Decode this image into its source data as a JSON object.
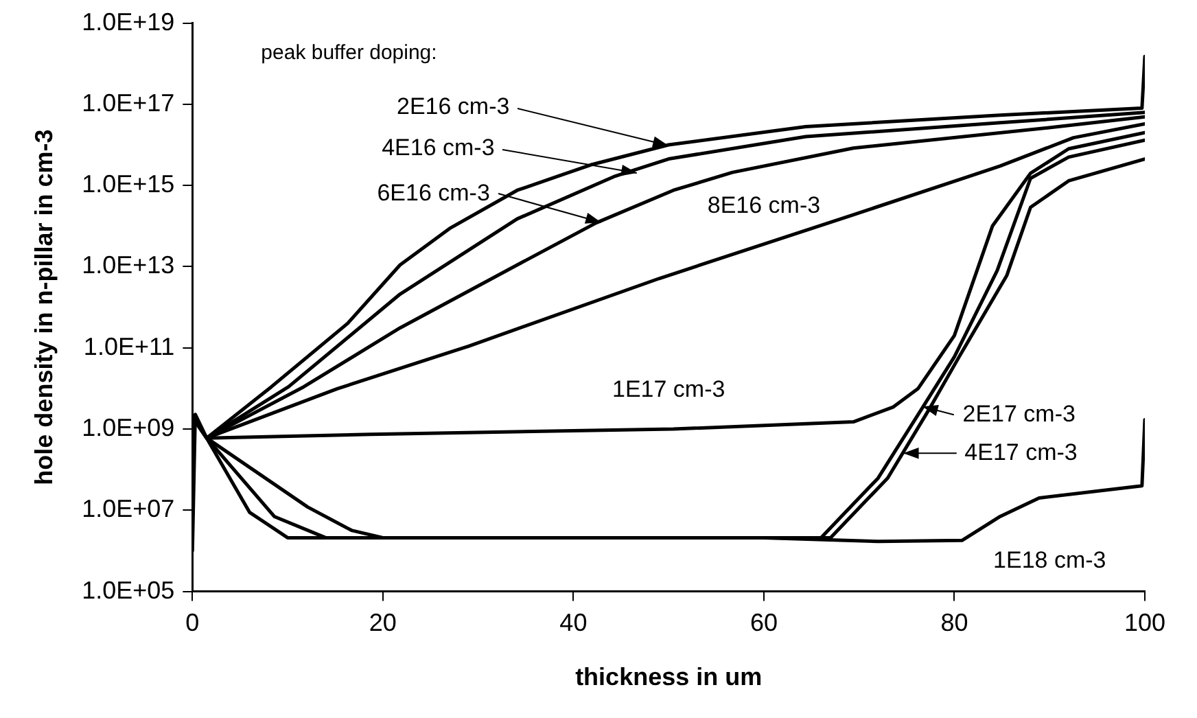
{
  "chart_data": {
    "type": "line",
    "xlabel": "thickness in um",
    "ylabel": "hole density in n-pillar in cm-3",
    "log": "y",
    "xlim": [
      0,
      100
    ],
    "xticks": [
      0,
      20,
      40,
      60,
      80,
      100
    ],
    "ylim": [
      100000.0,
      1e+19
    ],
    "yticks": [
      {
        "value": 100000.0,
        "label": "1.0E+05"
      },
      {
        "value": 10000000.0,
        "label": "1.0E+07"
      },
      {
        "value": 1000000000.0,
        "label": "1.0E+09"
      },
      {
        "value": 100000000000.0,
        "label": "1.0E+11"
      },
      {
        "value": 10000000000000.0,
        "label": "1.0E+13"
      },
      {
        "value": 1000000000000000.0,
        "label": "1.0E+15"
      },
      {
        "value": 1e+17,
        "label": "1.0E+17"
      },
      {
        "value": 1e+19,
        "label": "1.0E+19"
      }
    ],
    "grid": false,
    "legend": false,
    "marker": "none",
    "line_style": "solid",
    "series": [
      {
        "color": "#000000",
        "x": [
          0,
          1.5,
          8.3,
          16.3,
          21.8,
          27,
          34.1,
          41.8,
          50,
          64.4,
          84.8,
          99.7,
          100
        ],
        "values": [
          2000000000.0,
          600000000.0,
          11000000000.0,
          400000000000.0,
          11000000000000.0,
          87000000000000.0,
          760000000000000.0,
          3200000000000000.0,
          1e+16,
          2.8e+16,
          5.4e+16,
          8e+16,
          1.5e+18
        ]
      },
      {
        "color": "#000000",
        "x": [
          0,
          1.5,
          10.1,
          21.8,
          34.1,
          44.4,
          50,
          64.4,
          84.8,
          100
        ],
        "values": [
          2000000000.0,
          600000000.0,
          11000000000.0,
          2100000000000.0,
          150000000000000.0,
          1700000000000000.0,
          4500000000000000.0,
          1.6e+16,
          3.5e+16,
          6.3e+16
        ]
      },
      {
        "color": "#000000",
        "x": [
          0,
          1.5,
          11.7,
          21.8,
          34.1,
          42.4,
          50.5,
          56.7,
          69.4,
          90.9,
          100
        ],
        "values": [
          2000000000.0,
          600000000.0,
          11000000000.0,
          310000000000.0,
          11000000000000.0,
          120000000000000.0,
          760000000000000.0,
          2100000000000000.0,
          8300000000000000.0,
          2.8e+16,
          4.9e+16
        ]
      },
      {
        "color": "#000000",
        "x": [
          0,
          1.5,
          15.2,
          29,
          49,
          69.4,
          84.8,
          92.5,
          100
        ],
        "values": [
          2000000000.0,
          600000000.0,
          9800000000.0,
          110000000000.0,
          5100000000000.0,
          190000000000000.0,
          3000000000000000.0,
          1.5e+16,
          3.3e+16
        ]
      },
      {
        "color": "#000000",
        "x": [
          0,
          1.5,
          18.7,
          50.5,
          69.4,
          73.6,
          76.2,
          80,
          84,
          88,
          92,
          100
        ],
        "values": [
          2000000000.0,
          600000000.0,
          740000000.0,
          1000000000.0,
          1500000000.0,
          3500000000.0,
          10000000000.0,
          200000000000.0,
          100000000000000.0,
          2000000000000000.0,
          8000000000000000.0,
          2e+16
        ]
      },
      {
        "color": "#000000",
        "x": [
          0,
          1.5,
          12.1,
          16.7,
          20,
          66,
          72,
          76.7,
          80,
          84.5,
          88,
          92,
          100
        ],
        "values": [
          2000000000.0,
          600000000.0,
          12000000.0,
          3200000.0,
          2100000.0,
          2100000.0,
          62000000.0,
          3500000000.0,
          60000000000.0,
          8000000000000.0,
          1500000000000000.0,
          5000000000000000.0,
          1.3e+16
        ]
      },
      {
        "color": "#000000",
        "x": [
          0,
          1.5,
          8.6,
          14,
          67,
          73,
          77.5,
          80.5,
          85.5,
          88,
          92,
          100
        ],
        "values": [
          2000000000.0,
          600000000.0,
          7000000.0,
          2100000.0,
          2100000.0,
          62000000.0,
          3500000000.0,
          60000000000.0,
          6000000000000.0,
          290000000000000.0,
          1300000000000000.0,
          4500000000000000.0
        ]
      },
      {
        "color": "#000000",
        "x": [
          0,
          0.3,
          1.5,
          6,
          10,
          60,
          72,
          80.8,
          84.8,
          88.9,
          99.7,
          100
        ],
        "values": [
          1000000.0,
          2300000000.0,
          600000000.0,
          8900000.0,
          2100000.0,
          2100000.0,
          1700000.0,
          1800000.0,
          7000000.0,
          20000000.0,
          40000000.0,
          1700000000.0
        ]
      }
    ],
    "annotations": [
      "peak buffer doping:",
      {
        "text": "2E16 cm-3",
        "x": 50,
        "y": 1e+16
      },
      {
        "text": "4E16 cm-3",
        "x": 46.7,
        "y": 2100000000000000.0
      },
      {
        "text": "6E16 cm-3",
        "x": 42.9,
        "y": 120000000000000.0
      },
      {
        "text": "8E16 cm-3",
        "x": 60,
        "y": 30000000000000.0
      },
      {
        "text": "1E17 cm-3",
        "x": 50,
        "y": 1000000000.0
      },
      {
        "text": "2E17 cm-3",
        "x": 76.7,
        "y": 3500000000.0
      },
      {
        "text": "4E17 cm-3",
        "x": 74.6,
        "y": 250000000.0
      },
      {
        "text": "1E18 cm-3",
        "x": 90,
        "y": 20000000.0
      }
    ]
  }
}
